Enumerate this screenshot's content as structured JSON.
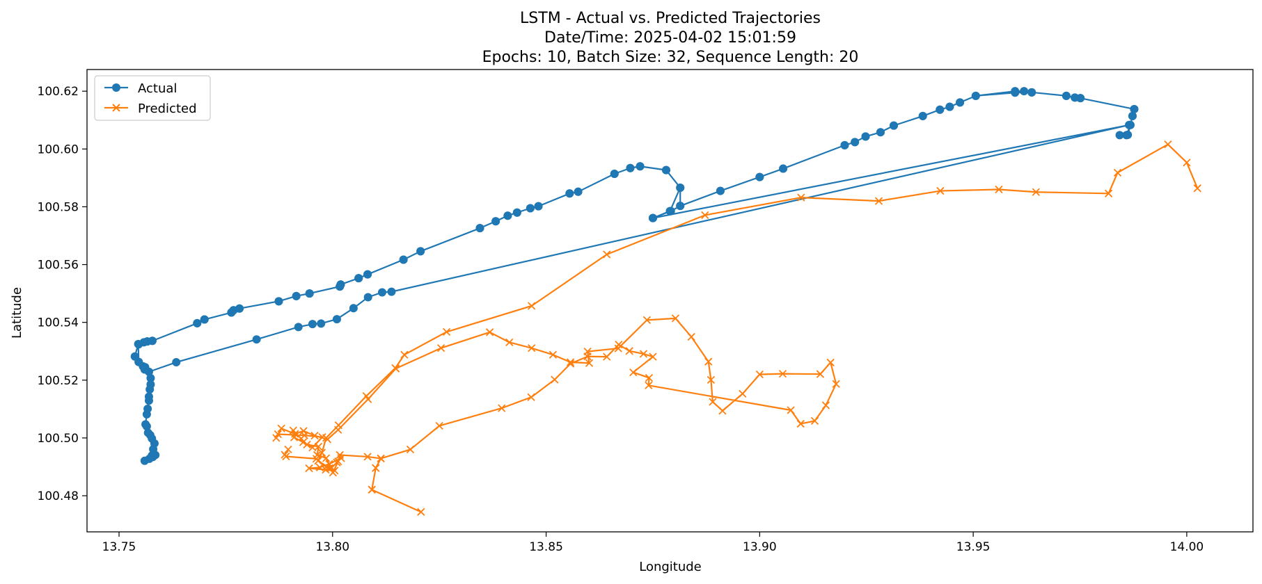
{
  "chart_data": {
    "type": "line",
    "title_lines": [
      "LSTM - Actual vs. Predicted Trajectories",
      "Date/Time: 2025-04-02 15:01:59",
      "Epochs: 10, Batch Size: 32, Sequence Length: 20"
    ],
    "xlabel": "Longitude",
    "ylabel": "Latitude",
    "xlim": [
      13.7425,
      14.0155
    ],
    "ylim": [
      100.4675,
      100.6275
    ],
    "xticks": [
      13.75,
      13.8,
      13.85,
      13.9,
      13.95,
      14.0
    ],
    "xtick_labels": [
      "13.75",
      "13.80",
      "13.85",
      "13.90",
      "13.95",
      "14.00"
    ],
    "yticks": [
      100.48,
      100.5,
      100.52,
      100.54,
      100.56,
      100.58,
      100.6,
      100.62
    ],
    "ytick_labels": [
      "100.48",
      "100.50",
      "100.52",
      "100.54",
      "100.56",
      "100.58",
      "100.60",
      "100.62"
    ],
    "legend_position": "top-left",
    "series": [
      {
        "name": "Actual",
        "color": "#1f77b4",
        "marker": "circle",
        "points": [
          [
            13.875,
            100.5761
          ],
          [
            13.8792,
            100.5785
          ],
          [
            13.8814,
            100.5803
          ],
          [
            13.8908,
            100.5855
          ],
          [
            13.9,
            100.5903
          ],
          [
            13.9055,
            100.5932
          ],
          [
            13.9199,
            100.6013
          ],
          [
            13.9223,
            100.6024
          ],
          [
            13.9248,
            100.6043
          ],
          [
            13.9283,
            100.6058
          ],
          [
            13.9314,
            100.6081
          ],
          [
            13.9382,
            100.6114
          ],
          [
            13.9422,
            100.6136
          ],
          [
            13.9445,
            100.6146
          ],
          [
            13.9469,
            100.6161
          ],
          [
            13.9506,
            100.6184
          ],
          [
            13.9598,
            100.62
          ],
          [
            13.9619,
            100.62
          ],
          [
            13.9637,
            100.6196
          ],
          [
            13.9718,
            100.6184
          ],
          [
            13.9738,
            100.6178
          ],
          [
            13.9751,
            100.6176
          ],
          [
            13.9877,
            100.6138
          ],
          [
            13.9873,
            100.6114
          ],
          [
            13.9868,
            100.6083
          ],
          [
            13.9859,
            100.6048
          ],
          [
            13.9843,
            100.6048
          ],
          [
            13.9862,
            100.6049
          ],
          [
            13.9868,
            100.6083
          ],
          [
            13.9873,
            100.6114
          ],
          [
            13.9877,
            100.6138
          ],
          [
            13.9751,
            100.6176
          ],
          [
            13.9738,
            100.6178
          ],
          [
            13.9718,
            100.6184
          ],
          [
            13.9637,
            100.6196
          ],
          [
            13.9598,
            100.6195
          ],
          [
            13.9506,
            100.6184
          ],
          [
            13.9469,
            100.6161
          ],
          [
            13.9445,
            100.6146
          ],
          [
            13.9422,
            100.6136
          ],
          [
            13.9382,
            100.6114
          ],
          [
            13.9314,
            100.6081
          ],
          [
            13.9283,
            100.6058
          ],
          [
            13.9248,
            100.6043
          ],
          [
            13.9223,
            100.6024
          ],
          [
            13.9199,
            100.6013
          ],
          [
            13.9055,
            100.5932
          ],
          [
            13.9,
            100.5903
          ],
          [
            13.8908,
            100.5855
          ],
          [
            13.8814,
            100.5803
          ],
          [
            13.8814,
            100.5866
          ],
          [
            13.8781,
            100.5927
          ],
          [
            13.872,
            100.594
          ],
          [
            13.8697,
            100.5934
          ],
          [
            13.866,
            100.5914
          ],
          [
            13.8575,
            100.5852
          ],
          [
            13.8555,
            100.5846
          ],
          [
            13.8482,
            100.5802
          ],
          [
            13.8463,
            100.5795
          ],
          [
            13.8432,
            100.578
          ],
          [
            13.841,
            100.5769
          ],
          [
            13.8382,
            100.575
          ],
          [
            13.8345,
            100.5726
          ],
          [
            13.8206,
            100.5646
          ],
          [
            13.8166,
            100.5617
          ],
          [
            13.8082,
            100.5566
          ],
          [
            13.8061,
            100.5553
          ],
          [
            13.8019,
            100.5531
          ],
          [
            13.8017,
            100.5524
          ],
          [
            13.7946,
            100.55
          ],
          [
            13.7915,
            100.5491
          ],
          [
            13.7874,
            100.5473
          ],
          [
            13.7782,
            100.5448
          ],
          [
            13.7768,
            100.5442
          ],
          [
            13.7763,
            100.5434
          ],
          [
            13.77,
            100.541
          ],
          [
            13.7683,
            100.5397
          ],
          [
            13.7578,
            100.5336
          ],
          [
            13.7566,
            100.5334
          ],
          [
            13.7546,
            100.5324
          ],
          [
            13.7558,
            100.5331
          ],
          [
            13.7566,
            100.5334
          ],
          [
            13.7578,
            100.5336
          ],
          [
            13.7683,
            100.5397
          ],
          [
            13.77,
            100.541
          ],
          [
            13.7763,
            100.5434
          ],
          [
            13.7768,
            100.5442
          ],
          [
            13.7782,
            100.5448
          ],
          [
            13.7874,
            100.5473
          ],
          [
            13.7915,
            100.5491
          ],
          [
            13.7946,
            100.55
          ],
          [
            13.8017,
            100.5524
          ],
          [
            13.8019,
            100.5531
          ],
          [
            13.8061,
            100.5553
          ],
          [
            13.8082,
            100.5566
          ],
          [
            13.8166,
            100.5617
          ],
          [
            13.8206,
            100.5646
          ],
          [
            13.8345,
            100.5726
          ],
          [
            13.8382,
            100.575
          ],
          [
            13.841,
            100.5769
          ],
          [
            13.8432,
            100.578
          ],
          [
            13.8463,
            100.5795
          ],
          [
            13.8482,
            100.5802
          ],
          [
            13.8555,
            100.5846
          ],
          [
            13.8575,
            100.5852
          ],
          [
            13.866,
            100.5914
          ],
          [
            13.8697,
            100.5934
          ],
          [
            13.872,
            100.594
          ],
          [
            13.8781,
            100.5927
          ],
          [
            13.8814,
            100.5866
          ],
          [
            13.879,
            100.5785
          ],
          [
            13.875,
            100.5761
          ]
        ],
        "points_part2": [
          [
            13.9865,
            100.6083
          ],
          [
            13.8138,
            100.5506
          ],
          [
            13.8116,
            100.5504
          ],
          [
            13.8083,
            100.5487
          ],
          [
            13.8049,
            100.5449
          ],
          [
            13.801,
            100.5411
          ],
          [
            13.7973,
            100.5396
          ],
          [
            13.7953,
            100.5394
          ],
          [
            13.792,
            100.5384
          ],
          [
            13.7822,
            100.5341
          ],
          [
            13.7634,
            100.5262
          ],
          [
            13.757,
            100.5229
          ],
          [
            13.756,
            100.5237
          ],
          [
            13.7561,
            100.5245
          ],
          [
            13.7556,
            100.5248
          ],
          [
            13.7546,
            100.5263
          ],
          [
            13.7537,
            100.5282
          ],
          [
            13.7545,
            100.5325
          ],
          [
            13.7546,
            100.5263
          ],
          [
            13.756,
            100.5237
          ],
          [
            13.7574,
            100.5207
          ],
          [
            13.7574,
            100.5185
          ],
          [
            13.7572,
            100.5168
          ],
          [
            13.757,
            100.5143
          ],
          [
            13.757,
            100.5129
          ],
          [
            13.7567,
            100.5101
          ],
          [
            13.7565,
            100.5082
          ],
          [
            13.7562,
            100.5047
          ],
          [
            13.7565,
            100.504
          ],
          [
            13.7568,
            100.5018
          ],
          [
            13.7573,
            100.501
          ],
          [
            13.7577,
            100.4998
          ],
          [
            13.7583,
            100.4981
          ],
          [
            13.758,
            100.4961
          ],
          [
            13.7585,
            100.4941
          ],
          [
            13.7579,
            100.4934
          ],
          [
            13.7577,
            100.4939
          ],
          [
            13.7571,
            100.4928
          ],
          [
            13.756,
            100.4921
          ]
        ]
      },
      {
        "name": "Predicted",
        "color": "#ff7f0e",
        "marker": "x",
        "points": [
          [
            14.0025,
            100.5864
          ],
          [
            14.0,
            100.5953
          ],
          [
            13.9956,
            100.6016
          ],
          [
            13.9838,
            100.5918
          ],
          [
            13.9817,
            100.5846
          ],
          [
            13.9647,
            100.5851
          ],
          [
            13.956,
            100.586
          ],
          [
            13.9423,
            100.5855
          ],
          [
            13.9279,
            100.582
          ],
          [
            13.9097,
            100.5832
          ],
          [
            13.8872,
            100.5771
          ],
          [
            13.8642,
            100.5635
          ],
          [
            13.8466,
            100.5457
          ],
          [
            13.8267,
            100.5367
          ],
          [
            13.8168,
            100.5288
          ],
          [
            13.8147,
            100.5242
          ],
          [
            13.8079,
            100.5145
          ],
          [
            13.8014,
            100.5044
          ],
          [
            13.7985,
            100.5
          ],
          [
            13.7975,
            100.4949
          ],
          [
            13.7966,
            100.4921
          ],
          [
            13.7993,
            100.4896
          ],
          [
            13.8001,
            100.488
          ],
          [
            13.8013,
            100.4919
          ],
          [
            13.8017,
            100.4941
          ],
          [
            13.8082,
            100.4935
          ],
          [
            13.8113,
            100.4929
          ],
          [
            13.8101,
            100.4896
          ],
          [
            13.8092,
            100.4821
          ],
          [
            13.8207,
            100.4744
          ],
          [
            13.8092,
            100.4821
          ],
          [
            13.8101,
            100.4896
          ],
          [
            13.8113,
            100.4929
          ],
          [
            13.8182,
            100.496
          ],
          [
            13.825,
            100.5042
          ],
          [
            13.8396,
            100.5103
          ],
          [
            13.8465,
            100.5141
          ],
          [
            13.852,
            100.5202
          ],
          [
            13.8557,
            100.5257
          ],
          [
            13.8597,
            100.5282
          ],
          [
            13.8642,
            100.5281
          ],
          [
            13.867,
            100.5323
          ],
          [
            13.8695,
            100.5301
          ],
          [
            13.8728,
            100.5291
          ],
          [
            13.875,
            100.5281
          ],
          [
            13.8704,
            100.5227
          ],
          [
            13.8741,
            100.5208
          ],
          [
            13.874,
            100.5182
          ],
          [
            13.9073,
            100.5096
          ],
          [
            13.9096,
            100.5049
          ],
          [
            13.9129,
            100.5059
          ],
          [
            13.9155,
            100.5113
          ],
          [
            13.9179,
            100.5187
          ],
          [
            13.9166,
            100.5261
          ],
          [
            13.9142,
            100.5221
          ],
          [
            13.9054,
            100.5222
          ],
          [
            13.9,
            100.522
          ],
          [
            13.896,
            100.5153
          ],
          [
            13.8913,
            100.5094
          ],
          [
            13.889,
            100.5125
          ],
          [
            13.8886,
            100.5201
          ],
          [
            13.888,
            100.5264
          ],
          [
            13.884,
            100.535
          ],
          [
            13.8803,
            100.5414
          ],
          [
            13.8736,
            100.5408
          ],
          [
            13.8669,
            100.531
          ],
          [
            13.8597,
            100.5299
          ],
          [
            13.8601,
            100.5259
          ],
          [
            13.8557,
            100.5262
          ],
          [
            13.8516,
            100.5288
          ],
          [
            13.8466,
            100.5311
          ],
          [
            13.8414,
            100.5331
          ],
          [
            13.8368,
            100.5366
          ],
          [
            13.8254,
            100.5311
          ],
          [
            13.8148,
            100.524
          ],
          [
            13.8083,
            100.5134
          ],
          [
            13.8013,
            100.5028
          ],
          [
            13.7988,
            100.4995
          ],
          [
            13.7958,
            100.5008
          ],
          [
            13.7932,
            100.5024
          ],
          [
            13.7912,
            100.5014
          ],
          [
            13.788,
            100.5033
          ],
          [
            13.7868,
            100.5
          ],
          [
            13.7872,
            100.5013
          ],
          [
            13.7934,
            100.5009
          ],
          [
            13.7976,
            100.5003
          ],
          [
            13.7953,
            100.4967
          ],
          [
            13.7931,
            100.4985
          ],
          [
            13.791,
            100.5002
          ],
          [
            13.7908,
            100.5026
          ],
          [
            13.794,
            100.4977
          ],
          [
            13.7967,
            100.497
          ],
          [
            13.7964,
            100.4941
          ],
          [
            13.7985,
            100.493
          ],
          [
            13.7997,
            100.4896
          ],
          [
            13.801,
            100.4915
          ],
          [
            13.802,
            100.493
          ],
          [
            13.7992,
            100.491
          ],
          [
            13.797,
            100.4898
          ],
          [
            13.7945,
            100.4895
          ],
          [
            13.7984,
            100.489
          ],
          [
            13.8005,
            100.4887
          ],
          [
            13.7985,
            100.49
          ],
          [
            13.7962,
            100.4928
          ],
          [
            13.7891,
            100.4936
          ],
          [
            13.7888,
            100.4942
          ],
          [
            13.7896,
            100.496
          ]
        ]
      }
    ]
  }
}
